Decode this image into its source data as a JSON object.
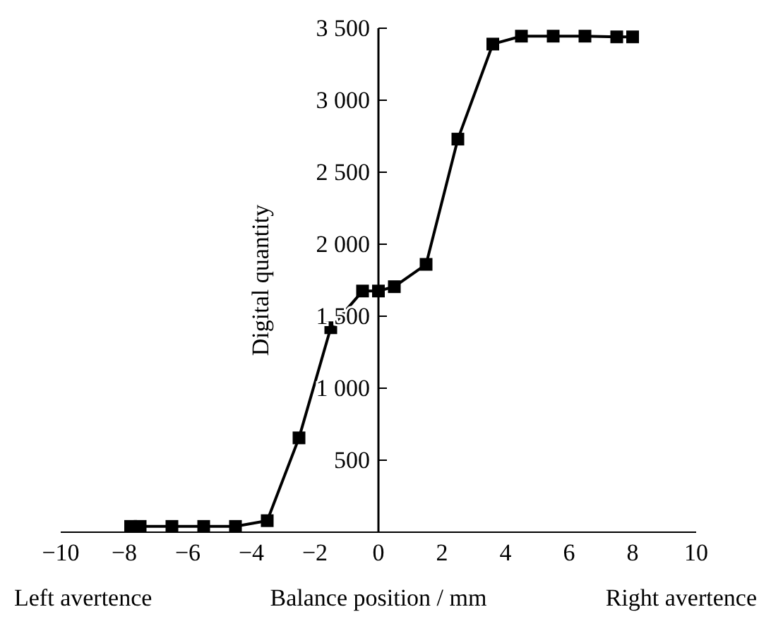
{
  "chart_data": {
    "type": "line",
    "xlabel": "Balance position / mm",
    "ylabel": "Digital quantity",
    "annotations": [
      "Left avertence",
      "Right avertence"
    ],
    "x": [
      -7.8,
      -7.5,
      -6.5,
      -5.5,
      -4.5,
      -3.5,
      -2.5,
      -1.5,
      -0.5,
      0,
      0.5,
      1.5,
      2.5,
      3.6,
      4.5,
      5.5,
      6.5,
      7.5,
      8
    ],
    "series": [
      {
        "color": "#000000",
        "values": [
          40,
          40,
          40,
          40,
          40,
          80,
          655,
          1420,
          1675,
          1675,
          1705,
          1860,
          2730,
          3390,
          3445,
          3445,
          3445,
          3440,
          3440
        ]
      }
    ],
    "xlim": [
      -10,
      10
    ],
    "xticks": [
      {
        "value": -10,
        "label": "−10"
      },
      {
        "value": -8,
        "label": "−8"
      },
      {
        "value": -6,
        "label": "−6"
      },
      {
        "value": -4,
        "label": "−4"
      },
      {
        "value": -2,
        "label": "−2"
      },
      0,
      2,
      4,
      6,
      8,
      10
    ],
    "ylim": [
      0,
      3500
    ],
    "yticks": [
      {
        "value": 500,
        "label": "500"
      },
      {
        "value": 1000,
        "label": "1 000"
      },
      {
        "value": 1500,
        "label": "1 500"
      },
      {
        "value": 2000,
        "label": "2 000"
      },
      {
        "value": 2500,
        "label": "2 500"
      },
      {
        "value": 3000,
        "label": "3 000"
      },
      {
        "value": 3500,
        "label": "3 500"
      }
    ],
    "grid": false,
    "legend": false,
    "marker": "square",
    "line_style": "solid"
  }
}
